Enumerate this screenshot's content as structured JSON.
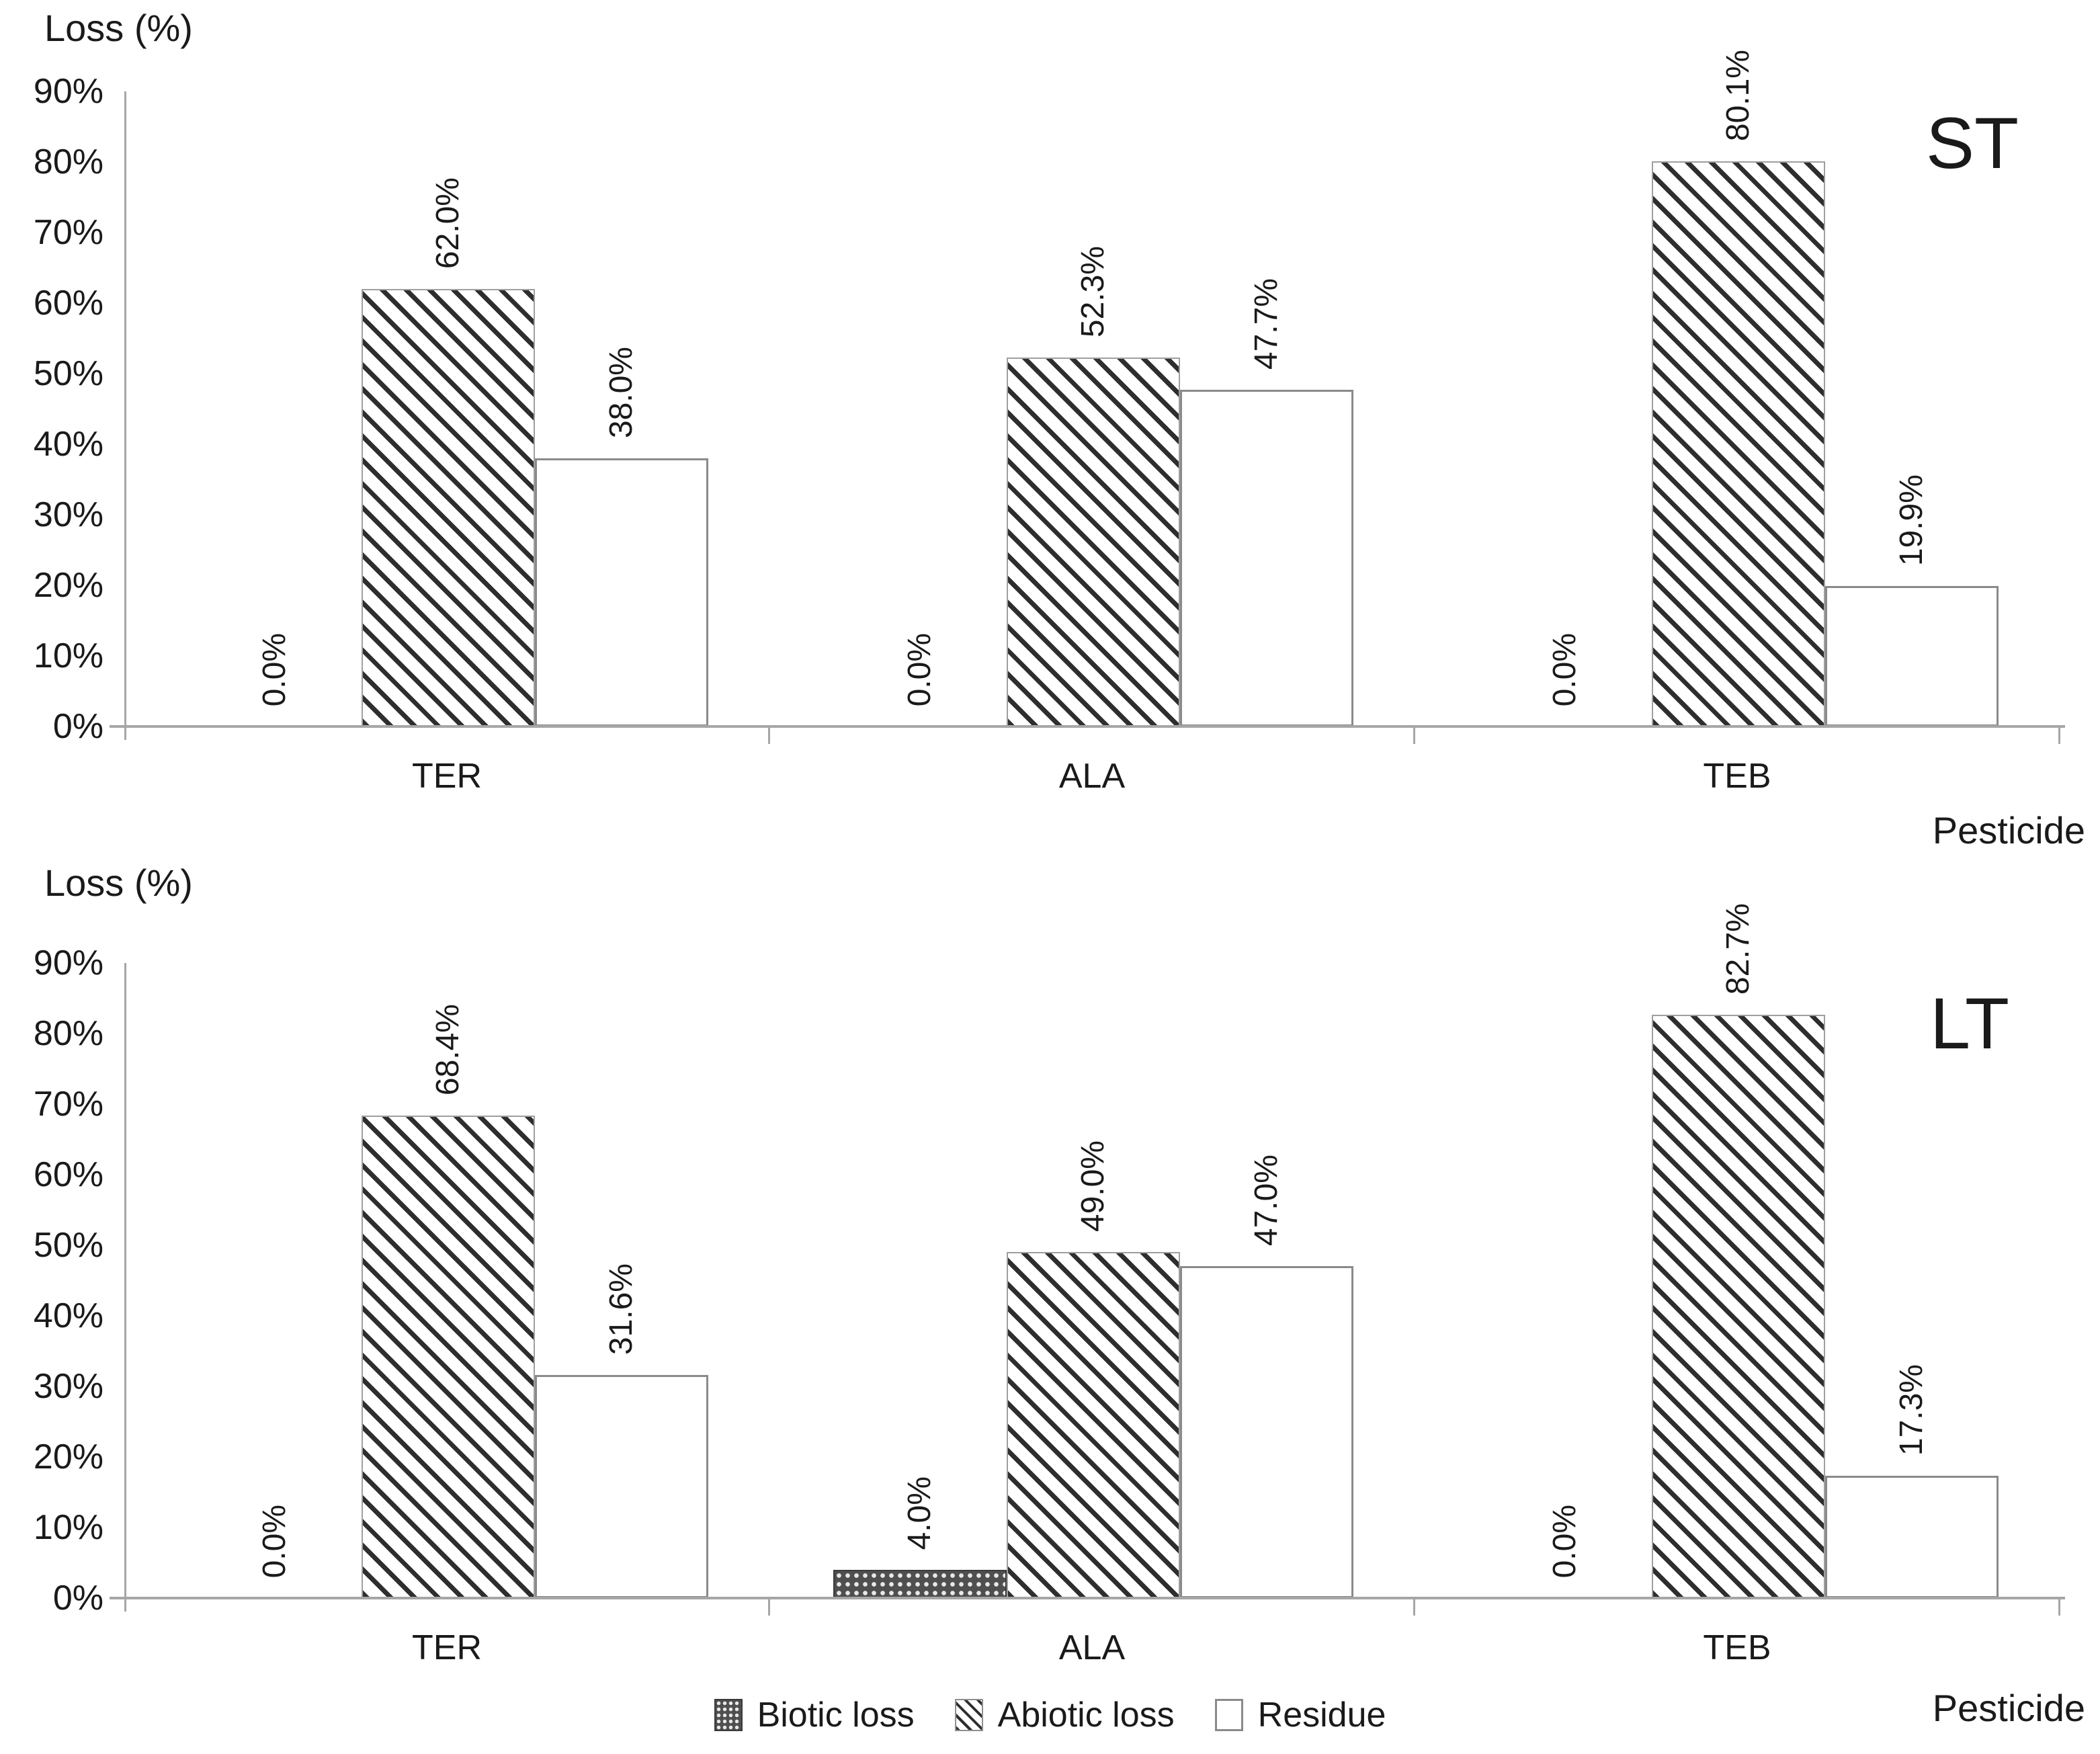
{
  "colors": {
    "background": "#ffffff",
    "axis": "#a6a6a6",
    "text": "#1a1a1a",
    "hatch_stripe": "#2e2e2e",
    "biotic_fill": "#4f4f4f",
    "biotic_dot": "#e9e9e9",
    "residue_border": "#8a8a8a"
  },
  "legend": {
    "items": [
      {
        "label": "Biotic loss",
        "swatch": "biotic"
      },
      {
        "label": "Abiotic loss",
        "swatch": "abiotic"
      },
      {
        "label": "Residue",
        "swatch": "residue"
      }
    ]
  },
  "chart_data": [
    {
      "type": "bar",
      "panel": "ST",
      "ylabel": "Loss (%)",
      "xlabel": "Pesticide",
      "ylim": [
        0,
        90
      ],
      "grid": "off",
      "yticks": [
        "90%",
        "80%",
        "70%",
        "60%",
        "50%",
        "40%",
        "30%",
        "20%",
        "10%",
        "0%"
      ],
      "categories": [
        "TER",
        "ALA",
        "TEB"
      ],
      "series": [
        {
          "name": "Biotic loss",
          "values": [
            0.0,
            0.0,
            0.0
          ],
          "labels": [
            "0.0%",
            "0.0%",
            "0.0%"
          ]
        },
        {
          "name": "Abiotic loss",
          "values": [
            62.0,
            52.3,
            80.1
          ],
          "labels": [
            "62.0%",
            "52.3%",
            "80.1%"
          ]
        },
        {
          "name": "Residue",
          "values": [
            38.0,
            47.7,
            19.9
          ],
          "labels": [
            "38.0%",
            "47.7%",
            "19.9%"
          ]
        }
      ]
    },
    {
      "type": "bar",
      "panel": "LT",
      "ylabel": "Loss (%)",
      "xlabel": "Pesticide",
      "ylim": [
        0,
        90
      ],
      "grid": "off",
      "yticks": [
        "90%",
        "80%",
        "70%",
        "60%",
        "50%",
        "40%",
        "30%",
        "20%",
        "10%",
        "0%"
      ],
      "categories": [
        "TER",
        "ALA",
        "TEB"
      ],
      "series": [
        {
          "name": "Biotic loss",
          "values": [
            0.0,
            4.0,
            0.0
          ],
          "labels": [
            "0.0%",
            "4.0%",
            "0.0%"
          ]
        },
        {
          "name": "Abiotic loss",
          "values": [
            68.4,
            49.0,
            82.7
          ],
          "labels": [
            "68.4%",
            "49.0%",
            "82.7%"
          ]
        },
        {
          "name": "Residue",
          "values": [
            31.6,
            47.0,
            17.3
          ],
          "labels": [
            "31.6%",
            "47.0%",
            "17.3%"
          ]
        }
      ]
    }
  ]
}
